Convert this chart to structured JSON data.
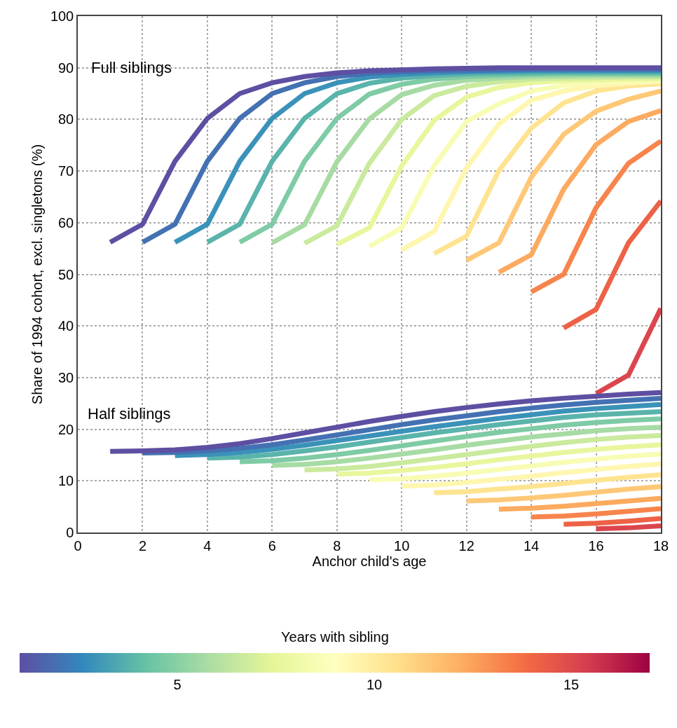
{
  "chart_data": {
    "type": "line",
    "xlabel": "Anchor child's age",
    "ylabel": "Share of 1994 cohort, excl. singletons (%)",
    "xlim": [
      0,
      18
    ],
    "xticks": [
      0,
      2,
      4,
      6,
      8,
      10,
      12,
      14,
      16,
      18
    ],
    "ylim": [
      0,
      100
    ],
    "yticks": [
      0,
      10,
      20,
      30,
      40,
      50,
      60,
      70,
      80,
      90,
      100
    ],
    "grid": true,
    "marker": "none",
    "line_style": "solid",
    "clabel": "Years with sibling",
    "clim": [
      1,
      17
    ],
    "cticks": [
      5,
      10,
      15
    ],
    "annotations": [
      "Full siblings",
      "Half siblings"
    ],
    "series": [
      {
        "color": "#5e4fa2",
        "x": [
          1,
          2,
          3,
          4,
          5,
          6,
          7,
          8,
          9,
          10,
          11,
          12,
          13,
          14,
          15,
          16,
          17,
          18
        ],
        "values": [
          56.2,
          59.7,
          71.9,
          80.2,
          85.0,
          87.1,
          88.3,
          89.0,
          89.4,
          89.6,
          89.8,
          89.9,
          90.0,
          90.0,
          90.0,
          90.0,
          90.0,
          90.0
        ]
      },
      {
        "color": "#4471b2",
        "x": [
          2,
          3,
          4,
          5,
          6,
          7,
          8,
          9,
          10,
          11,
          12,
          13,
          14,
          15,
          16,
          17,
          18
        ],
        "values": [
          56.2,
          59.7,
          71.9,
          80.2,
          85.0,
          87.1,
          88.3,
          88.9,
          89.2,
          89.4,
          89.5,
          89.6,
          89.7,
          89.7,
          89.7,
          89.7,
          89.7
        ]
      },
      {
        "color": "#3b92b9",
        "x": [
          3,
          4,
          5,
          6,
          7,
          8,
          9,
          10,
          11,
          12,
          13,
          14,
          15,
          16,
          17,
          18
        ],
        "values": [
          56.2,
          59.7,
          71.9,
          80.2,
          85.0,
          87.1,
          88.2,
          88.7,
          89.0,
          89.2,
          89.3,
          89.4,
          89.4,
          89.4,
          89.4,
          89.4
        ]
      },
      {
        "color": "#5ab4ab",
        "x": [
          4,
          5,
          6,
          7,
          8,
          9,
          10,
          11,
          12,
          13,
          14,
          15,
          16,
          17,
          18
        ],
        "values": [
          56.2,
          59.7,
          71.9,
          80.2,
          85.0,
          87.0,
          88.0,
          88.5,
          88.8,
          88.9,
          89.0,
          89.1,
          89.1,
          89.1,
          89.1
        ]
      },
      {
        "color": "#7ecba5",
        "x": [
          5,
          6,
          7,
          8,
          9,
          10,
          11,
          12,
          13,
          14,
          15,
          16,
          17,
          18
        ],
        "values": [
          56.2,
          59.7,
          71.9,
          80.2,
          84.9,
          86.8,
          87.8,
          88.3,
          88.5,
          88.7,
          88.8,
          88.8,
          88.8,
          88.8
        ]
      },
      {
        "color": "#a7dba4",
        "x": [
          6,
          7,
          8,
          9,
          10,
          11,
          12,
          13,
          14,
          15,
          16,
          17,
          18
        ],
        "values": [
          56.1,
          59.6,
          71.8,
          80.1,
          84.8,
          86.6,
          87.6,
          88.0,
          88.3,
          88.4,
          88.5,
          88.5,
          88.5
        ]
      },
      {
        "color": "#caea9e",
        "x": [
          7,
          8,
          9,
          10,
          11,
          12,
          13,
          14,
          15,
          16,
          17,
          18
        ],
        "values": [
          56.0,
          59.4,
          71.5,
          80.0,
          84.6,
          86.4,
          87.3,
          87.8,
          88.0,
          88.1,
          88.2,
          88.2
        ]
      },
      {
        "color": "#e9f69d",
        "x": [
          8,
          9,
          10,
          11,
          12,
          13,
          14,
          15,
          16,
          17,
          18
        ],
        "values": [
          55.8,
          59.0,
          71.0,
          79.8,
          84.3,
          86.2,
          87.1,
          87.5,
          87.7,
          87.8,
          87.9
        ]
      },
      {
        "color": "#f8fcb4",
        "x": [
          9,
          10,
          11,
          12,
          13,
          14,
          15,
          16,
          17,
          18
        ],
        "values": [
          55.4,
          59.0,
          71.0,
          79.6,
          83.0,
          85.5,
          86.6,
          87.1,
          87.4,
          87.6
        ]
      },
      {
        "color": "#fff6b0",
        "x": [
          10,
          11,
          12,
          13,
          14,
          15,
          16,
          17,
          18
        ],
        "values": [
          54.7,
          58.3,
          70.6,
          79.1,
          83.7,
          85.5,
          86.5,
          87.0,
          87.3
        ]
      },
      {
        "color": "#fee491",
        "x": [
          11,
          12,
          13,
          14,
          15,
          16,
          17,
          18
        ],
        "values": [
          54.0,
          57.4,
          70.1,
          78.3,
          83.2,
          85.5,
          86.5,
          86.9
        ]
      },
      {
        "color": "#fec877",
        "x": [
          12,
          13,
          14,
          15,
          16,
          17,
          18
        ],
        "values": [
          52.7,
          56.1,
          68.8,
          77.1,
          81.6,
          83.9,
          85.5
        ]
      },
      {
        "color": "#fcaa5f",
        "x": [
          13,
          14,
          15,
          16,
          17,
          18
        ],
        "values": [
          50.4,
          53.8,
          66.5,
          75.1,
          79.6,
          81.7
        ]
      },
      {
        "color": "#f7844d",
        "x": [
          14,
          15,
          16,
          17,
          18
        ],
        "values": [
          46.6,
          50.0,
          62.9,
          71.5,
          75.8
        ]
      },
      {
        "color": "#ed6246",
        "x": [
          15,
          16,
          17,
          18
        ],
        "values": [
          39.6,
          43.2,
          56.1,
          64.2
        ]
      },
      {
        "color": "#db464d",
        "x": [
          16,
          17,
          18
        ],
        "values": [
          26.9,
          30.5,
          43.4
        ]
      },
      {
        "color": "#5e4fa2",
        "x": [
          1,
          2,
          3,
          4,
          5,
          6,
          7,
          8,
          9,
          10,
          11,
          12,
          13,
          14,
          15,
          16,
          17,
          18
        ],
        "values": [
          15.7,
          15.8,
          16.0,
          16.5,
          17.2,
          18.2,
          19.3,
          20.4,
          21.5,
          22.5,
          23.4,
          24.2,
          24.9,
          25.5,
          26.0,
          26.4,
          26.8,
          27.1
        ]
      },
      {
        "color": "#4471b2",
        "x": [
          2,
          3,
          4,
          5,
          6,
          7,
          8,
          9,
          10,
          11,
          12,
          13,
          14,
          15,
          16,
          17,
          18
        ],
        "values": [
          15.4,
          15.5,
          15.8,
          16.3,
          17.0,
          17.9,
          18.9,
          19.9,
          20.9,
          21.8,
          22.6,
          23.4,
          24.1,
          24.7,
          25.2,
          25.6,
          26.0
        ]
      },
      {
        "color": "#3b92b9",
        "x": [
          3,
          4,
          5,
          6,
          7,
          8,
          9,
          10,
          11,
          12,
          13,
          14,
          15,
          16,
          17,
          18
        ],
        "values": [
          14.9,
          15.1,
          15.5,
          16.1,
          16.9,
          17.8,
          18.7,
          19.6,
          20.5,
          21.3,
          22.1,
          22.8,
          23.5,
          24.0,
          24.4,
          24.8
        ]
      },
      {
        "color": "#5ab4ab",
        "x": [
          4,
          5,
          6,
          7,
          8,
          9,
          10,
          11,
          12,
          13,
          14,
          15,
          16,
          17,
          18
        ],
        "values": [
          14.4,
          14.6,
          15.1,
          15.8,
          16.6,
          17.5,
          18.4,
          19.3,
          20.1,
          20.9,
          21.6,
          22.3,
          22.8,
          23.1,
          23.4
        ]
      },
      {
        "color": "#7ecba5",
        "x": [
          5,
          6,
          7,
          8,
          9,
          10,
          11,
          12,
          13,
          14,
          15,
          16,
          17,
          18
        ],
        "values": [
          13.7,
          13.9,
          14.4,
          15.1,
          15.9,
          16.8,
          17.7,
          18.6,
          19.4,
          20.1,
          20.8,
          21.3,
          21.7,
          22.0
        ]
      },
      {
        "color": "#a7dba4",
        "x": [
          6,
          7,
          8,
          9,
          10,
          11,
          12,
          13,
          14,
          15,
          16,
          17,
          18
        ],
        "values": [
          13.0,
          13.2,
          13.7,
          14.4,
          15.2,
          16.0,
          16.9,
          17.7,
          18.5,
          19.1,
          19.7,
          20.1,
          20.4
        ]
      },
      {
        "color": "#caea9e",
        "x": [
          7,
          8,
          9,
          10,
          11,
          12,
          13,
          14,
          15,
          16,
          17,
          18
        ],
        "values": [
          12.1,
          12.3,
          12.8,
          13.5,
          14.3,
          15.1,
          15.9,
          16.7,
          17.4,
          18.0,
          18.5,
          18.8
        ]
      },
      {
        "color": "#e9f69d",
        "x": [
          8,
          9,
          10,
          11,
          12,
          13,
          14,
          15,
          16,
          17,
          18
        ],
        "values": [
          11.3,
          11.5,
          12.0,
          12.6,
          13.3,
          14.1,
          14.8,
          15.5,
          16.1,
          16.6,
          17.0
        ]
      },
      {
        "color": "#f8fcb4",
        "x": [
          9,
          10,
          11,
          12,
          13,
          14,
          15,
          16,
          17,
          18
        ],
        "values": [
          10.2,
          10.4,
          10.9,
          11.5,
          12.2,
          12.9,
          13.6,
          14.2,
          14.8,
          15.2
        ]
      },
      {
        "color": "#fff6b0",
        "x": [
          10,
          11,
          12,
          13,
          14,
          15,
          16,
          17,
          18
        ],
        "values": [
          9.0,
          9.2,
          9.7,
          10.3,
          10.9,
          11.6,
          12.2,
          12.8,
          13.3
        ]
      },
      {
        "color": "#fee491",
        "x": [
          11,
          12,
          13,
          14,
          15,
          16,
          17,
          18
        ],
        "values": [
          7.7,
          7.9,
          8.4,
          8.9,
          9.5,
          10.1,
          10.7,
          11.2
        ]
      },
      {
        "color": "#fec877",
        "x": [
          12,
          13,
          14,
          15,
          16,
          17,
          18
        ],
        "values": [
          6.1,
          6.3,
          6.7,
          7.2,
          7.8,
          8.4,
          8.9
        ]
      },
      {
        "color": "#fcaa5f",
        "x": [
          13,
          14,
          15,
          16,
          17,
          18
        ],
        "values": [
          4.5,
          4.7,
          5.1,
          5.6,
          6.1,
          6.6
        ]
      },
      {
        "color": "#f7844d",
        "x": [
          14,
          15,
          16,
          17,
          18
        ],
        "values": [
          3.0,
          3.2,
          3.6,
          4.1,
          4.6
        ]
      },
      {
        "color": "#ed6246",
        "x": [
          15,
          16,
          17,
          18
        ],
        "values": [
          1.6,
          1.8,
          2.2,
          2.7
        ]
      },
      {
        "color": "#db464d",
        "x": [
          16,
          17,
          18
        ],
        "values": [
          0.7,
          0.9,
          1.3
        ]
      }
    ]
  }
}
